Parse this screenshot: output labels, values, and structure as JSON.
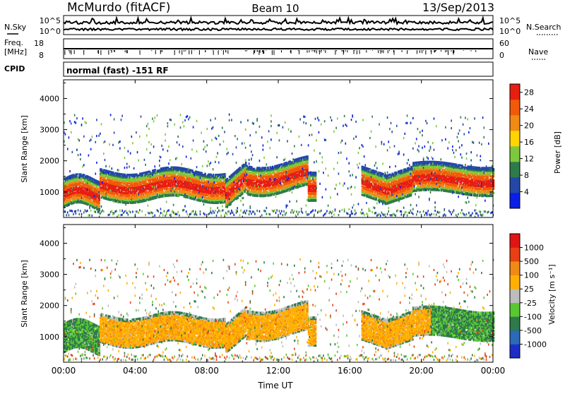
{
  "header": {
    "station": "McMurdo (fitACF)",
    "beam": "Beam 10",
    "date": "13/Sep/2013"
  },
  "aux_panels": {
    "nsky_label": "N.Sky",
    "nsearch_label": "N.Search",
    "noise_ticks": [
      "10^5",
      "10^0"
    ],
    "freq_label": "Freq.",
    "freq_unit": "[MHz]",
    "freq_ticks": [
      "18",
      "8"
    ],
    "nave_label": "Nave",
    "nave_ticks": [
      "60",
      "0"
    ],
    "cpid_label": "CPID",
    "cpid_text": "normal (fast) -151 RF"
  },
  "chart_data": [
    {
      "type": "heatmap",
      "panel": "power",
      "ylabel": "Slant Range [km]",
      "xlabel": "",
      "x_ticks": [
        "00:00",
        "04:00",
        "08:00",
        "12:00",
        "16:00",
        "20:00",
        "00:00"
      ],
      "xlim_hours": [
        0,
        24
      ],
      "y_ticks": [
        1000,
        2000,
        3000,
        4000
      ],
      "ylim": [
        180,
        4600
      ],
      "colorbar_label": "Power [dB]",
      "colorbar_ticks": [
        4,
        8,
        12,
        16,
        20,
        24,
        28
      ],
      "colorbar_range": [
        0,
        30
      ],
      "colorbar_colors": [
        "#0a1ee6",
        "#2448a8",
        "#2f7a4a",
        "#7dc83c",
        "#ffd400",
        "#f08a14",
        "#f05a0a",
        "#e81e12"
      ]
    },
    {
      "type": "heatmap",
      "panel": "velocity",
      "ylabel": "Slant Range [km]",
      "xlabel": "Time UT",
      "x_ticks": [
        "00:00",
        "04:00",
        "08:00",
        "12:00",
        "16:00",
        "20:00",
        "00:00"
      ],
      "xlim_hours": [
        0,
        24
      ],
      "y_ticks": [
        1000,
        2000,
        3000,
        4000
      ],
      "ylim": [
        180,
        4600
      ],
      "colorbar_label": "Velocity [m s⁻¹]",
      "colorbar_ticks": [
        "1000",
        "500",
        "100",
        "25",
        "-25",
        "-100",
        "-500",
        "-1000"
      ],
      "colorbar_colors": [
        "#1e2cc8",
        "#2a6ab8",
        "#2f7a4a",
        "#59c832",
        "#bdbdbd",
        "#ffb000",
        "#f08a14",
        "#e84014",
        "#e01414"
      ]
    }
  ]
}
